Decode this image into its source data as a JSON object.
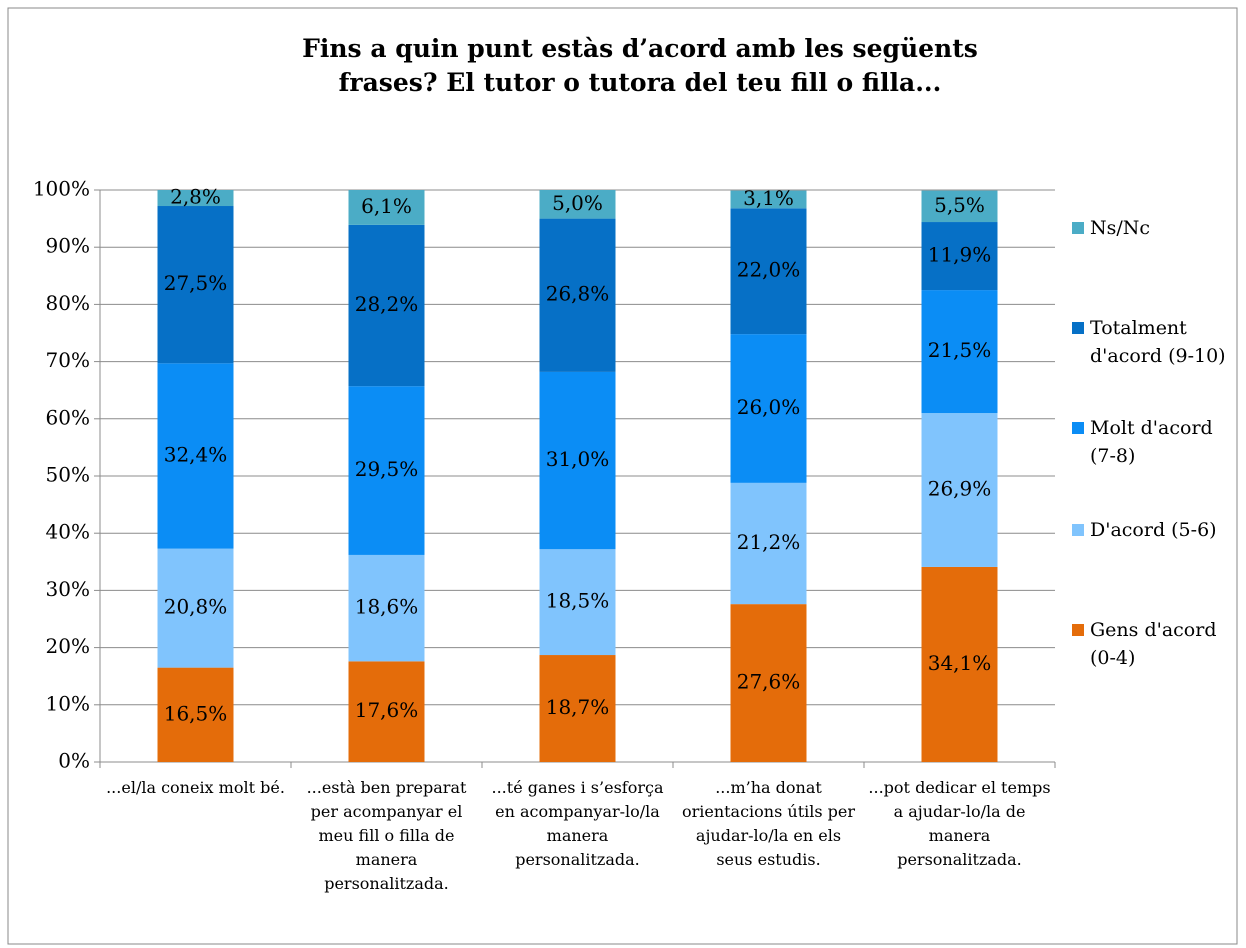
{
  "chart_data": {
    "type": "stacked_bar",
    "title": "Fins a quin punt estàs d’acord amb les següents frases? El tutor o tutora del teu fill o filla...",
    "categories": [
      "...el/la coneix molt bé.",
      "...està ben preparat per acompanyar el meu fill o filla de manera personalitzada.",
      "...té ganes i s’esforça en acompanyar-lo/la manera personalitzada.",
      "...m’ha donat orientacions útils per ajudar-lo/la en els seus estudis.",
      "...pot dedicar el temps a ajudar-lo/la de manera personalitzada."
    ],
    "series": [
      {
        "name": "Gens d'acord (0-4)",
        "color": "#e46c0a",
        "values": [
          16.5,
          17.6,
          18.7,
          27.6,
          34.1
        ],
        "value_labels": [
          "16,5%",
          "17,6%",
          "18,7%",
          "27,6%",
          "34,1%"
        ]
      },
      {
        "name": "D'acord (5-6)",
        "color": "#80c4fd",
        "values": [
          20.8,
          18.6,
          18.5,
          21.2,
          26.9
        ],
        "value_labels": [
          "20,8%",
          "18,6%",
          "18,5%",
          "21,2%",
          "26,9%"
        ]
      },
      {
        "name": "Molt d'acord (7-8)",
        "color": "#0b8df5",
        "values": [
          32.4,
          29.5,
          31.0,
          26.0,
          21.5
        ],
        "value_labels": [
          "32,4%",
          "29,5%",
          "31,0%",
          "26,0%",
          "21,5%"
        ]
      },
      {
        "name": "Totalment d'acord (9-10)",
        "color": "#0670c6",
        "values": [
          27.5,
          28.2,
          26.8,
          22.0,
          11.9
        ],
        "value_labels": [
          "27,5%",
          "28,2%",
          "26,8%",
          "22,0%",
          "11,9%"
        ]
      },
      {
        "name": "Ns/Nc",
        "color": "#4bacc6",
        "values": [
          2.8,
          6.1,
          5.0,
          3.1,
          5.5
        ],
        "value_labels": [
          "2,8%",
          "6,1%",
          "5,0%",
          "3,1%",
          "5,5%"
        ]
      }
    ],
    "ylim": [
      0,
      100
    ],
    "yticks": [
      {
        "value": 0,
        "label": "0%"
      },
      {
        "value": 10,
        "label": "10%"
      },
      {
        "value": 20,
        "label": "20%"
      },
      {
        "value": 30,
        "label": "30%"
      },
      {
        "value": 40,
        "label": "40%"
      },
      {
        "value": 50,
        "label": "50%"
      },
      {
        "value": 60,
        "label": "60%"
      },
      {
        "value": 70,
        "label": "70%"
      },
      {
        "value": 80,
        "label": "80%"
      },
      {
        "value": 90,
        "label": "90%"
      },
      {
        "value": 100,
        "label": "100%"
      }
    ],
    "grid": true,
    "legend": "right"
  }
}
